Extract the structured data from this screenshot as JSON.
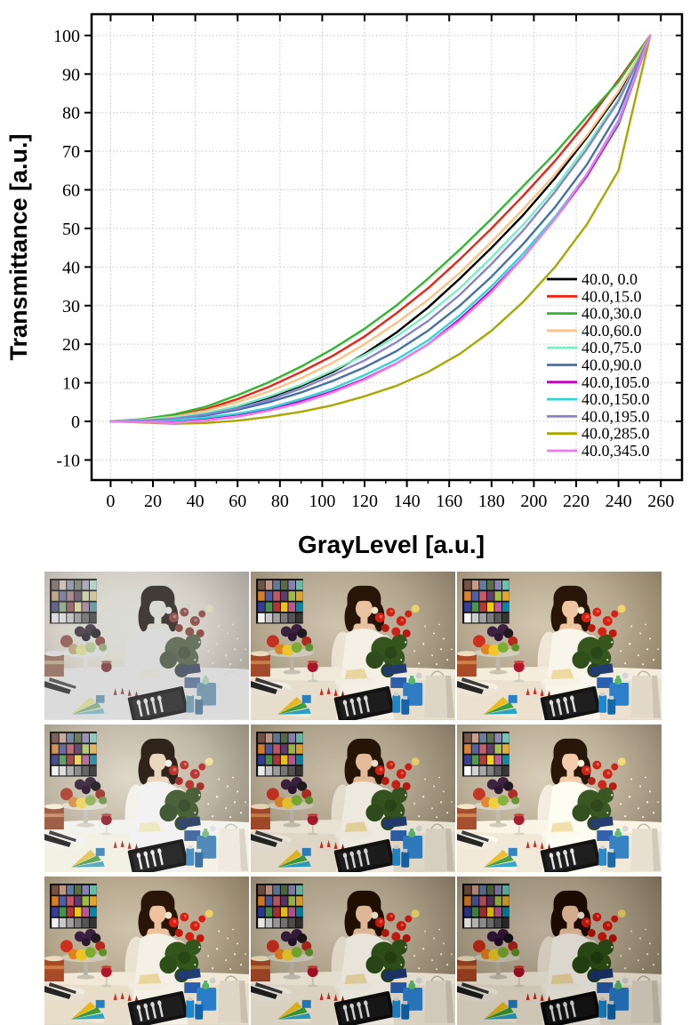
{
  "chart_data": {
    "type": "line",
    "xlabel": "GrayLevel [a.u.]",
    "ylabel": "Transmittance [a.u.]",
    "xlim": [
      -9,
      270
    ],
    "ylim": [
      -15.2,
      105.5
    ],
    "xticks": [
      0,
      20,
      40,
      60,
      80,
      100,
      120,
      140,
      160,
      180,
      200,
      220,
      240,
      260
    ],
    "yticks": [
      -10,
      0,
      10,
      20,
      30,
      40,
      50,
      60,
      70,
      80,
      90,
      100
    ],
    "grid": true,
    "legend_position": "inside-right-middle",
    "x": [
      0,
      15,
      30,
      45,
      60,
      75,
      90,
      105,
      120,
      135,
      150,
      165,
      180,
      195,
      210,
      225,
      240,
      255
    ],
    "series": [
      {
        "name": "40.0, 0.0",
        "color": "#000000",
        "values": [
          0,
          0.2,
          0.8,
          2,
          3.8,
          6.2,
          9.2,
          12.8,
          17.5,
          23,
          29.5,
          37,
          45,
          53.5,
          63,
          73.5,
          85,
          100
        ]
      },
      {
        "name": "40.0,15.0",
        "color": "#ee2211",
        "values": [
          0,
          0.5,
          1.5,
          3.2,
          5.8,
          9,
          12.8,
          17,
          22,
          28,
          34.5,
          42,
          50,
          58.5,
          67.5,
          77.5,
          88.5,
          100
        ]
      },
      {
        "name": "40.0,30.0",
        "color": "#2eb82e",
        "values": [
          0,
          0.6,
          1.8,
          3.8,
          6.8,
          10.2,
          14.2,
          18.8,
          24,
          30,
          37,
          44.5,
          52.5,
          61,
          69.5,
          79,
          88,
          100
        ]
      },
      {
        "name": "40.0,60.0",
        "color": "#ffc182",
        "values": [
          0,
          0.4,
          1.2,
          2.8,
          5,
          7.8,
          11.2,
          15.2,
          20,
          25.5,
          31.5,
          38.5,
          46.5,
          55,
          64,
          74,
          85.5,
          100
        ]
      },
      {
        "name": "40.0,75.0",
        "color": "#7dedc4",
        "values": [
          0,
          0.3,
          1,
          2.2,
          4,
          6.5,
          9.5,
          13.2,
          17.2,
          22,
          27.8,
          34.5,
          42.5,
          51,
          60.5,
          71.5,
          83.5,
          100
        ]
      },
      {
        "name": "40.0,90.0",
        "color": "#4472a8",
        "values": [
          0,
          0.2,
          0.6,
          1.5,
          3,
          5,
          7.5,
          10.5,
          14,
          18.2,
          23.5,
          30,
          37.5,
          46,
          55.5,
          66.5,
          80,
          100
        ]
      },
      {
        "name": "40.0,105.0",
        "color": "#c000c0",
        "values": [
          0,
          0,
          0.2,
          0.8,
          1.8,
          3.2,
          5.2,
          7.8,
          11,
          15,
          20,
          26.5,
          34,
          42.5,
          52.5,
          63.5,
          77,
          100
        ]
      },
      {
        "name": "40.0,150.0",
        "color": "#2fd6d6",
        "values": [
          0,
          0,
          0.3,
          1,
          2,
          3.5,
          5.8,
          8.5,
          12,
          16,
          21,
          27.5,
          35,
          43.5,
          53,
          64,
          77.5,
          100
        ]
      },
      {
        "name": "40.0,195.0",
        "color": "#8585cf",
        "values": [
          0,
          0.2,
          0.7,
          1.8,
          3.4,
          5.6,
          8.5,
          12,
          15.8,
          20.5,
          26,
          32.8,
          40.8,
          49.5,
          59.5,
          70.5,
          83,
          100
        ]
      },
      {
        "name": "40.0,285.0",
        "color": "#a8a800",
        "values": [
          0,
          -0.3,
          -0.6,
          -0.4,
          0.2,
          1.2,
          2.5,
          4.2,
          6.5,
          9.2,
          12.8,
          17.5,
          23.5,
          31,
          40,
          51,
          65,
          100
        ]
      },
      {
        "name": "40.0,345.0",
        "color": "#ee7bee",
        "values": [
          0,
          -0.2,
          -0.4,
          0.2,
          1.2,
          2.8,
          4.8,
          7.5,
          10.8,
          15,
          20,
          26,
          33.5,
          42.5,
          52.5,
          64,
          78,
          100
        ]
      }
    ]
  },
  "photo_grid": {
    "rows": 3,
    "cols": 3,
    "description": "Same table-scene test photograph (woman in white dress with rose bouquet, color checker, fruit bowl, wine glass, cutlery case, blue gifts) rendered 9 times with different gray-level / gamma settings",
    "cells": [
      {
        "name": "photo-r1c1",
        "tone": "overexposed washed out",
        "filter": "brightness(1.42) saturate(0.38) contrast(0.72)"
      },
      {
        "name": "photo-r1c2",
        "tone": "normal warm",
        "filter": "none"
      },
      {
        "name": "photo-r1c3",
        "tone": "normal warm",
        "filter": "brightness(1.02) saturate(1.05)"
      },
      {
        "name": "photo-r2c1",
        "tone": "slightly washed",
        "filter": "brightness(1.15) saturate(0.7) contrast(0.9)"
      },
      {
        "name": "photo-r2c2",
        "tone": "normal",
        "filter": "brightness(0.97)"
      },
      {
        "name": "photo-r2c3",
        "tone": "slightly bright",
        "filter": "brightness(1.05) saturate(0.92)"
      },
      {
        "name": "photo-r3c1",
        "tone": "normal",
        "filter": "saturate(1.08)"
      },
      {
        "name": "photo-r3c2",
        "tone": "slightly dark",
        "filter": "brightness(0.93) contrast(1.05)"
      },
      {
        "name": "photo-r3c3",
        "tone": "darker",
        "filter": "brightness(0.87) contrast(1.08)"
      }
    ],
    "color_checker": {
      "rows": [
        [
          "#735244",
          "#c29682",
          "#627a9d",
          "#576c43",
          "#8580b1",
          "#67bdaa"
        ],
        [
          "#d67e2c",
          "#505ba6",
          "#c15a63",
          "#5e3c6c",
          "#9dbc40",
          "#e0a32e"
        ],
        [
          "#383d96",
          "#469449",
          "#af363c",
          "#e7c71f",
          "#bb5695",
          "#0885a1"
        ],
        [
          "#f3f3f2",
          "#c8c8c8",
          "#a0a0a0",
          "#7a7a7a",
          "#555555",
          "#343434"
        ]
      ]
    }
  },
  "style_colors": {
    "grid_line": "#c4c4c4",
    "frame": "#000000",
    "tick_label": "#000000"
  }
}
